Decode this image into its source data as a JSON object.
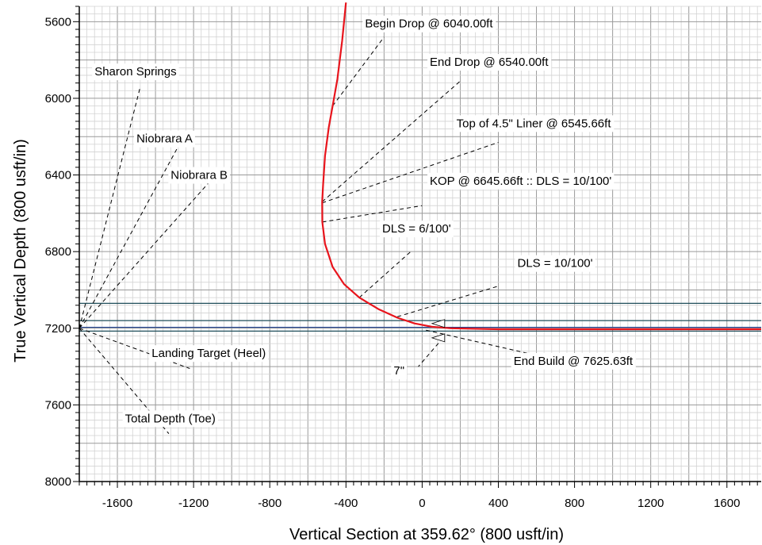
{
  "chart_data": {
    "type": "line",
    "xlabel": "Vertical Section at 359.62° (800 usft/in)",
    "ylabel": "True Vertical Depth (800 usft/in)",
    "xlim": [
      -1800,
      1780
    ],
    "ylim": [
      5520,
      8000
    ],
    "y_inverted": true,
    "x_ticks": [
      -1600,
      -1200,
      -800,
      -400,
      0,
      400,
      800,
      1200,
      1600
    ],
    "y_ticks": [
      5600,
      6000,
      6400,
      6800,
      7200,
      7600,
      8000
    ],
    "grid": true,
    "series": [
      {
        "color": "#e8141c",
        "points": [
          [
            -400,
            5500
          ],
          [
            -420,
            5700
          ],
          [
            -445,
            5900
          ],
          [
            -470,
            6040
          ],
          [
            -490,
            6150
          ],
          [
            -510,
            6300
          ],
          [
            -520,
            6450
          ],
          [
            -525,
            6540
          ],
          [
            -524,
            6645.66
          ],
          [
            -510,
            6760
          ],
          [
            -470,
            6880
          ],
          [
            -410,
            6970
          ],
          [
            -330,
            7040
          ],
          [
            -230,
            7100
          ],
          [
            -130,
            7145
          ],
          [
            -40,
            7175
          ],
          [
            50,
            7192
          ],
          [
            150,
            7200
          ],
          [
            400,
            7205
          ],
          [
            1000,
            7205
          ],
          [
            1780,
            7205
          ]
        ]
      }
    ],
    "horizontal_lines": [
      {
        "y": 7070,
        "color": "#1f4e5a"
      },
      {
        "y": 7160,
        "color": "#1f4e5a"
      },
      {
        "y": 7195,
        "color": "#1a3c8c"
      },
      {
        "y": 7215,
        "color": "#1f4e5a"
      }
    ],
    "casing_markers": [
      {
        "x": 110,
        "y": 7175
      },
      {
        "x": 110,
        "y": 7250
      }
    ],
    "annotations": [
      {
        "text": "Begin Drop @ 6040.00ft",
        "point": [
          -470,
          6040
        ],
        "label_at": [
          -300,
          5610
        ],
        "anchor": [
          -200,
          5680
        ]
      },
      {
        "text": "End Drop @ 6540.00ft",
        "point": [
          -525,
          6540
        ],
        "label_at": [
          40,
          5810
        ],
        "anchor": [
          200,
          5910
        ]
      },
      {
        "text": "Top of 4.5\" Liner @ 6545.66ft",
        "point": [
          -525,
          6545.66
        ],
        "label_at": [
          180,
          6130
        ],
        "anchor": [
          400,
          6230
        ]
      },
      {
        "text": "KOP @ 6645.66ft :: DLS = 10/100'",
        "point": [
          -524,
          6645.66
        ],
        "label_at": [
          40,
          6430
        ],
        "anchor": [
          0,
          6560
        ]
      },
      {
        "text": "DLS = 6/100'",
        "point": [
          -330,
          7040
        ],
        "label_at": [
          -210,
          6680
        ],
        "anchor": [
          -60,
          6800
        ]
      },
      {
        "text": "DLS = 10/100'",
        "point": [
          -130,
          7140
        ],
        "label_at": [
          500,
          6860
        ],
        "anchor": [
          400,
          6980
        ]
      },
      {
        "text": "End Build @ 7625.63ft",
        "point": [
          20,
          7210
        ],
        "label_at": [
          480,
          7370
        ],
        "anchor": [
          640,
          7350
        ]
      },
      {
        "text": "7\"",
        "point": [
          110,
          7250
        ],
        "label_at": [
          -150,
          7420
        ],
        "anchor": [
          -20,
          7400
        ]
      },
      {
        "text": "Sharon Springs",
        "point": [
          -1800,
          7200
        ],
        "label_at": [
          -1720,
          5860
        ],
        "anchor": [
          -1480,
          5940
        ]
      },
      {
        "text": "Niobrara A",
        "point": [
          -1800,
          7200
        ],
        "label_at": [
          -1500,
          6210
        ],
        "anchor": [
          -1280,
          6250
        ]
      },
      {
        "text": "Niobrara B",
        "point": [
          -1800,
          7200
        ],
        "label_at": [
          -1320,
          6400
        ],
        "anchor": [
          -1120,
          6440
        ]
      },
      {
        "text": "Landing Target (Heel)",
        "point": [
          -1800,
          7200
        ],
        "label_at": [
          -1420,
          7330
        ],
        "anchor": [
          -1220,
          7410
        ]
      },
      {
        "text": "Total Depth (Toe)",
        "point": [
          -1800,
          7200
        ],
        "label_at": [
          -1560,
          7670
        ],
        "anchor": [
          -1330,
          7750
        ]
      }
    ]
  }
}
